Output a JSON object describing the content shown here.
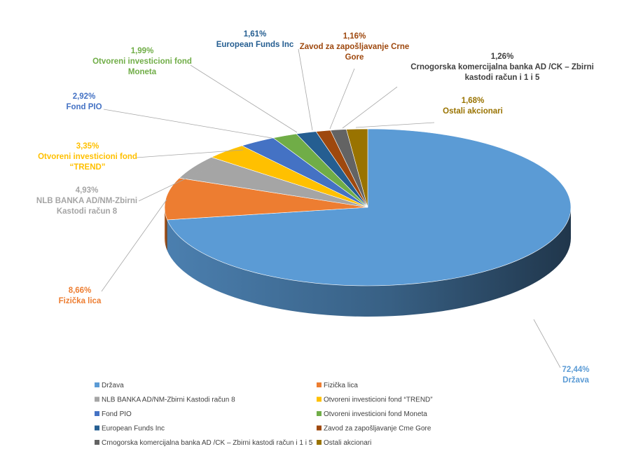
{
  "chart_data": {
    "type": "pie",
    "style": "3d",
    "legend_position": "bottom",
    "series": [
      {
        "name": "Država",
        "value": 72.44,
        "label": "72,44%",
        "color": "#5b9bd5",
        "label_color": "#5b9bd5"
      },
      {
        "name": "Fizička lica",
        "value": 8.66,
        "label": "8,66%",
        "color": "#ed7d31",
        "label_color": "#ed7d31"
      },
      {
        "name": "NLB BANKA AD/NM-Zbirni Kastodi račun 8",
        "value": 4.93,
        "label": "4,93%",
        "color": "#a5a5a5",
        "label_color": "#a5a5a5"
      },
      {
        "name": "Otvoreni investicioni fond “TREND”",
        "value": 3.35,
        "label": "3,35%",
        "color": "#ffc000",
        "label_color": "#ffc000"
      },
      {
        "name": "Fond PIO",
        "value": 2.92,
        "label": "2,92%",
        "color": "#4472c4",
        "label_color": "#4472c4"
      },
      {
        "name": "Otvoreni investicioni fond Moneta",
        "value": 1.99,
        "label": "1,99%",
        "color": "#70ad47",
        "label_color": "#70ad47"
      },
      {
        "name": "European Funds Inc",
        "value": 1.61,
        "label": "1,61%",
        "color": "#255e91",
        "label_color": "#255e91"
      },
      {
        "name": "Zavod za zapošljavanje Crne Gore",
        "value": 1.16,
        "label": "1,16%",
        "color": "#9e480e",
        "label_color": "#9e480e"
      },
      {
        "name": "Crnogorska komercijalna banka AD /CK – Zbirni kastodi račun i 1 i 5",
        "value": 1.26,
        "label": "1,26%",
        "color": "#636363",
        "label_color": "#404040"
      },
      {
        "name": "Ostali akcionari",
        "value": 1.68,
        "label": "1,68%",
        "color": "#997300",
        "label_color": "#997300"
      }
    ],
    "data_labels": [
      {
        "series": 0,
        "lines": [
          "72,44%",
          "Država"
        ]
      },
      {
        "series": 1,
        "lines": [
          "8,66%",
          "Fizička lica"
        ]
      },
      {
        "series": 2,
        "lines": [
          "4,93%",
          "NLB BANKA AD/NM-Zbirni",
          "Kastodi račun 8"
        ]
      },
      {
        "series": 3,
        "lines": [
          "3,35%",
          "Otvoreni investicioni fond",
          "“TREND”"
        ]
      },
      {
        "series": 4,
        "lines": [
          "2,92%",
          "Fond PIO"
        ]
      },
      {
        "series": 5,
        "lines": [
          "1,99%",
          "Otvoreni investicioni fond",
          "Moneta"
        ]
      },
      {
        "series": 6,
        "lines": [
          "1,61%",
          "European Funds Inc"
        ]
      },
      {
        "series": 7,
        "lines": [
          "1,16%",
          "Zavod za zapošljavanje Crne",
          "Gore"
        ]
      },
      {
        "series": 8,
        "lines": [
          "1,26%",
          "Crnogorska komercijalna banka AD /CK – Zbirni",
          "kastodi račun i 1 i 5"
        ]
      },
      {
        "series": 9,
        "lines": [
          "1,68%",
          "Ostali akcionari"
        ]
      }
    ],
    "legend_labels": [
      "Država",
      "Fizička lica",
      "NLB BANKA AD/NM-Zbirni Kastodi račun 8",
      "Otvoreni investicioni fond “TREND”",
      "Fond PIO",
      "Otvoreni investicioni fond Moneta",
      "European Funds Inc",
      "Zavod za zapošljavanje Cme Gore",
      "Crnogorska komercijalna banka AD /CK – Zbirni kastodi račun i 1 i 5",
      "Ostali akcionari"
    ]
  }
}
